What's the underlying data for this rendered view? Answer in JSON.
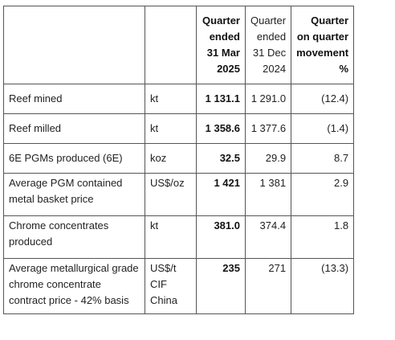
{
  "table": {
    "headers": {
      "col2": [
        "Quarter",
        "ended",
        "31 Mar",
        "2025"
      ],
      "col3": [
        "Quarter",
        "ended",
        "31 Dec",
        "2024"
      ],
      "col4": [
        "Quarter",
        "on quarter",
        "movement",
        "%"
      ]
    },
    "rows": [
      {
        "label": "Reef mined",
        "unit": "kt",
        "q1": "1 131.1",
        "q4": "1 291.0",
        "move": "(12.4)"
      },
      {
        "label": "Reef milled",
        "unit": "kt",
        "q1": "1 358.6",
        "q4": "1 377.6",
        "move": "(1.4)"
      },
      {
        "label": "6E PGMs produced (6E)",
        "unit": "koz",
        "q1": "32.5",
        "q4": "29.9",
        "move": "8.7"
      },
      {
        "label": "Average PGM contained metal basket price",
        "unit": "US$/oz",
        "q1": "1 421",
        "q4": "1 381",
        "move": "2.9"
      },
      {
        "label": "Chrome concentrates produced",
        "unit": "kt",
        "q1": "381.0",
        "q4": "374.4",
        "move": "1.8"
      },
      {
        "label": "Average metallurgical grade chrome concentrate contract price - 42% basis",
        "unit": "US$/t CIF China",
        "q1": "235",
        "q4": "271",
        "move": "(13.3)"
      }
    ]
  }
}
